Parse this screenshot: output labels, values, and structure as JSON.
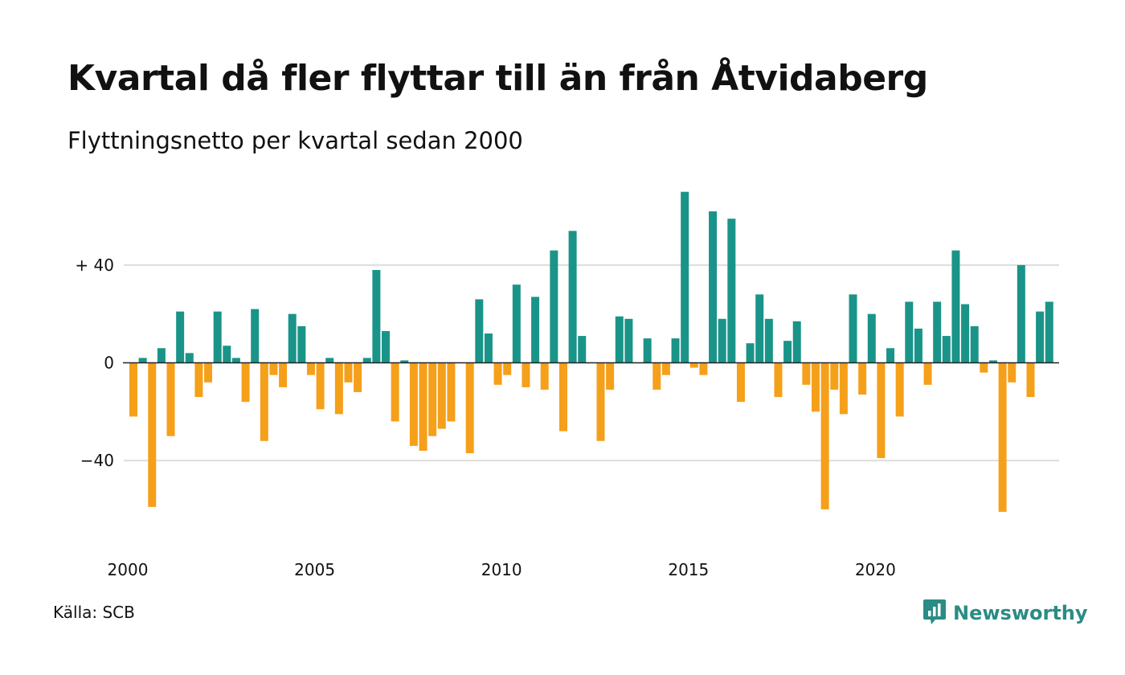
{
  "header": {
    "title": "Kvartal då fler flyttar till än från Åtvidaberg",
    "subtitle": "Flyttningsnetto per kvartal sedan 2000"
  },
  "footer": {
    "source": "Källa: SCB",
    "brand": "Newsworthy",
    "brand_icon": "newsworthy-logo-icon"
  },
  "colors": {
    "positive": "#1a9488",
    "negative": "#f5a01a",
    "grid": "#dddddd",
    "zero_line": "#222222",
    "brand": "#2a8c84"
  },
  "chart_data": {
    "type": "bar",
    "x_start": "2000 Q1",
    "x_ticks": [
      {
        "quarter": "2000 Q1",
        "label": "2000"
      },
      {
        "quarter": "2005 Q1",
        "label": "2005"
      },
      {
        "quarter": "2010 Q1",
        "label": "2010"
      },
      {
        "quarter": "2015 Q1",
        "label": "2015"
      },
      {
        "quarter": "2020 Q1",
        "label": "2020"
      }
    ],
    "y_ticks": [
      {
        "value": 40,
        "label": "+ 40"
      },
      {
        "value": 0,
        "label": "0"
      },
      {
        "value": -40,
        "label": "−40"
      }
    ],
    "ylim": [
      -70,
      80
    ],
    "grid": true,
    "values": [
      -22,
      2,
      -59,
      6,
      -30,
      21,
      4,
      -14,
      -8,
      21,
      7,
      2,
      -16,
      22,
      -32,
      -5,
      -10,
      20,
      15,
      -5,
      -19,
      2,
      -21,
      -8,
      -12,
      2,
      38,
      13,
      -24,
      1,
      -34,
      -36,
      -30,
      -27,
      -24,
      0,
      -37,
      26,
      12,
      -9,
      -5,
      32,
      -10,
      27,
      -11,
      46,
      -28,
      54,
      11,
      0,
      -32,
      -11,
      19,
      18,
      0,
      10,
      -11,
      -5,
      10,
      70,
      -2,
      -5,
      62,
      18,
      59,
      -16,
      8,
      28,
      18,
      -14,
      9,
      17,
      -9,
      -20,
      -60,
      -11,
      -21,
      28,
      -13,
      20,
      -39,
      6,
      -22,
      25,
      14,
      -9,
      25,
      11,
      46,
      24,
      15,
      -4,
      1,
      -61,
      -8,
      40,
      -14,
      21,
      25
    ]
  }
}
